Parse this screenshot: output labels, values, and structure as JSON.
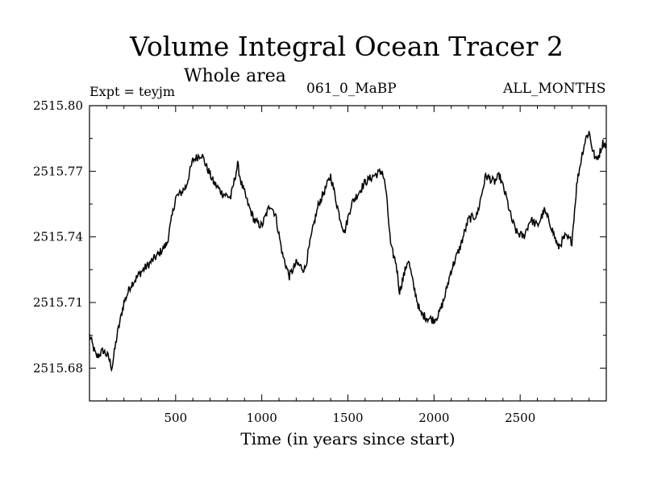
{
  "header": {
    "title": "Volume Integral Ocean Tracer 2",
    "subtitle": "Whole area",
    "experiment": "Expt = teyjm",
    "run_label": "061_0_MaBP",
    "months_label": "ALL_MONTHS"
  },
  "chart_data": {
    "type": "line",
    "title": "Volume Integral Ocean Tracer 2",
    "subtitle": "Whole area",
    "xlabel": "Time (in years since start)",
    "ylabel": "",
    "xlim": [
      0,
      3000
    ],
    "ylim": [
      2515.665,
      2515.8
    ],
    "xticks": [
      500,
      1000,
      1500,
      2000,
      2500
    ],
    "xtick_labels": [
      "500",
      "1000",
      "1500",
      "2000",
      "2500"
    ],
    "yticks": [
      2515.68,
      2515.71,
      2515.74,
      2515.77,
      2515.8
    ],
    "ytick_labels": [
      "2515.68",
      "2515.71",
      "2515.74",
      "2515.77",
      "2515.80"
    ],
    "grid": false,
    "series": [
      {
        "name": "Tracer 2",
        "color": "#000000",
        "x": [
          0,
          40,
          80,
          110,
          130,
          160,
          200,
          240,
          300,
          350,
          400,
          450,
          500,
          530,
          560,
          600,
          650,
          680,
          720,
          770,
          820,
          860,
          880,
          920,
          960,
          1000,
          1050,
          1080,
          1120,
          1160,
          1180,
          1200,
          1250,
          1300,
          1330,
          1370,
          1400,
          1450,
          1480,
          1520,
          1560,
          1600,
          1650,
          1700,
          1720,
          1750,
          1780,
          1800,
          1850,
          1880,
          1920,
          1960,
          2000,
          2030,
          2060,
          2100,
          2150,
          2200,
          2250,
          2300,
          2350,
          2380,
          2420,
          2450,
          2480,
          2520,
          2560,
          2600,
          2640,
          2680,
          2720,
          2760,
          2800,
          2830,
          2860,
          2880,
          2900,
          2920,
          2940,
          2960,
          2980,
          3000
        ],
        "y": [
          2515.695,
          2515.685,
          2515.688,
          2515.685,
          2515.68,
          2515.695,
          2515.71,
          2515.718,
          2515.724,
          2515.728,
          2515.732,
          2515.737,
          2515.758,
          2515.76,
          2515.763,
          2515.775,
          2515.778,
          2515.772,
          2515.765,
          2515.76,
          2515.758,
          2515.773,
          2515.765,
          2515.755,
          2515.747,
          2515.745,
          2515.755,
          2515.75,
          2515.732,
          2515.722,
          2515.725,
          2515.728,
          2515.725,
          2515.745,
          2515.755,
          2515.762,
          2515.768,
          2515.75,
          2515.742,
          2515.755,
          2515.76,
          2515.765,
          2515.768,
          2515.77,
          2515.762,
          2515.735,
          2515.728,
          2515.715,
          2515.73,
          2515.718,
          2515.705,
          2515.703,
          2515.702,
          2515.705,
          2515.712,
          2515.725,
          2515.735,
          2515.748,
          2515.75,
          2515.768,
          2515.765,
          2515.768,
          2515.758,
          2515.748,
          2515.742,
          2515.74,
          2515.748,
          2515.745,
          2515.752,
          2515.745,
          2515.735,
          2515.74,
          2515.738,
          2515.765,
          2515.778,
          2515.785,
          2515.788,
          2515.78,
          2515.775,
          2515.778,
          2515.783,
          2515.782
        ]
      }
    ]
  }
}
